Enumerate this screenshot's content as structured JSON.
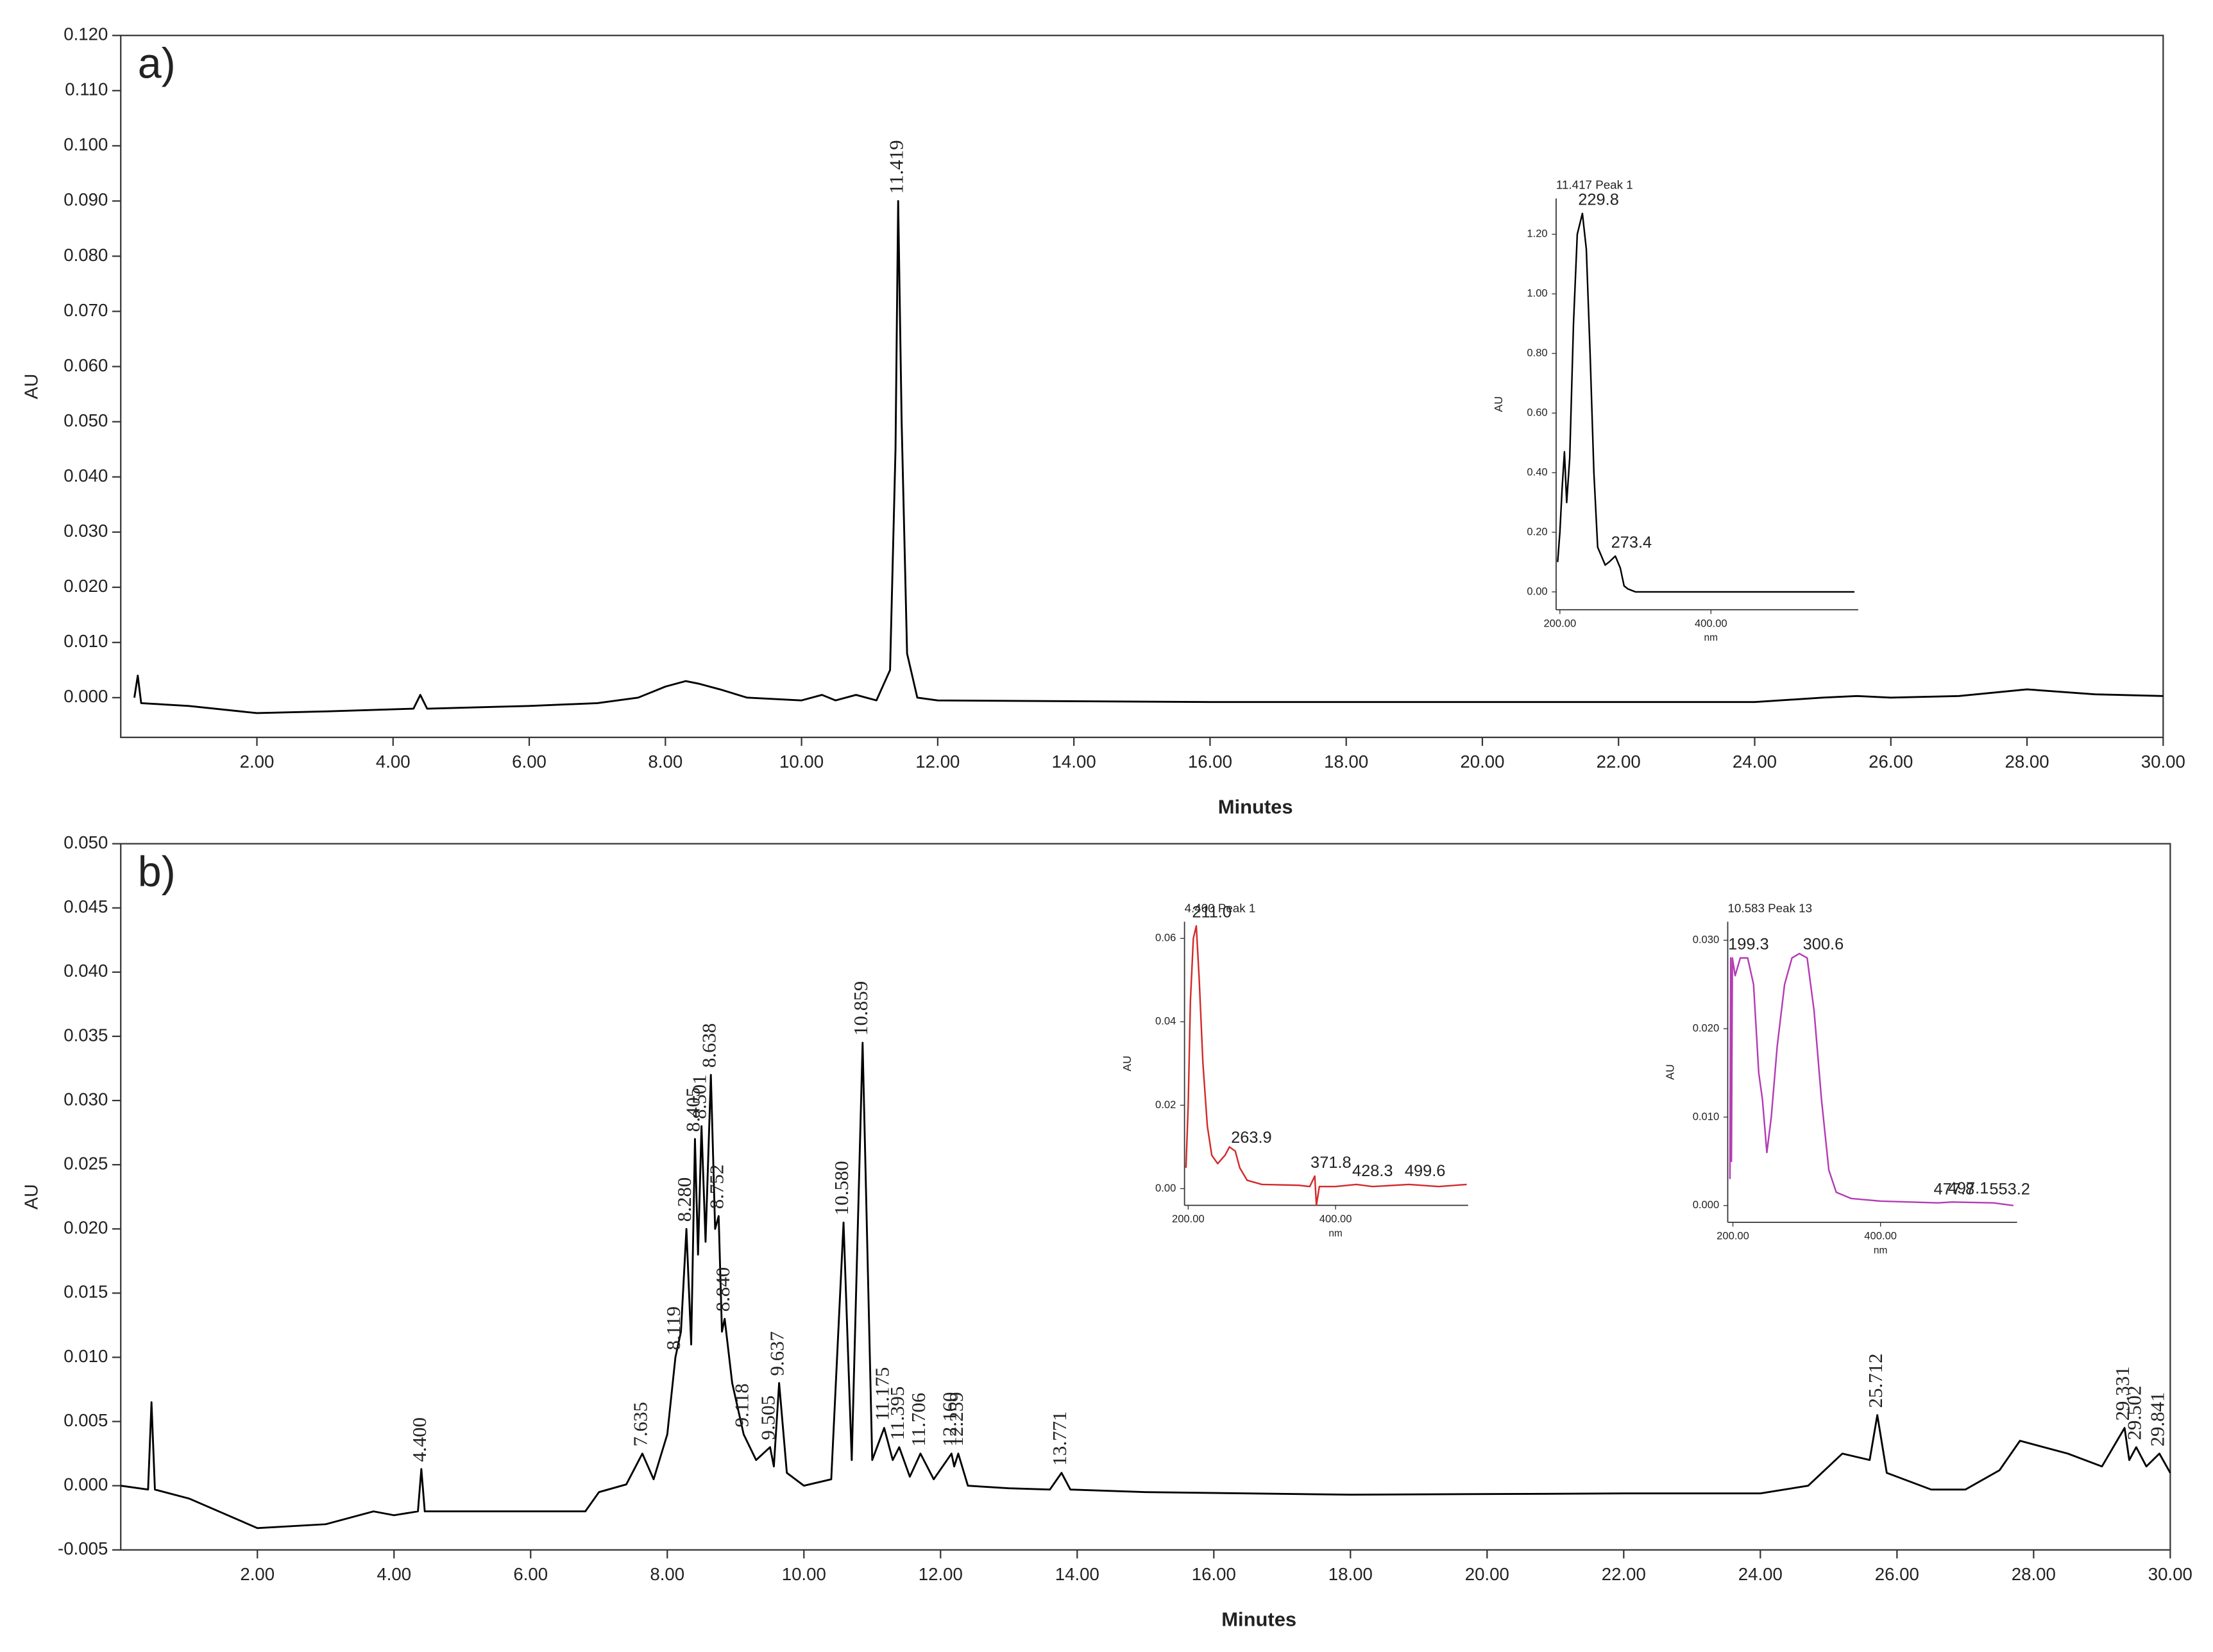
{
  "chart_data": [
    {
      "type": "line",
      "panel_label": "a)",
      "xlabel": "Minutes",
      "ylabel": "AU",
      "color": "#000000",
      "xlim": [
        0,
        30
      ],
      "ylim": [
        -0.0072,
        0.12
      ],
      "xticks": [
        {
          "value": 2,
          "label": "2.00"
        },
        {
          "value": 4,
          "label": "4.00"
        },
        {
          "value": 6,
          "label": "6.00"
        },
        {
          "value": 8,
          "label": "8.00"
        },
        {
          "value": 10,
          "label": "10.00"
        },
        {
          "value": 12,
          "label": "12.00"
        },
        {
          "value": 14,
          "label": "14.00"
        },
        {
          "value": 16,
          "label": "16.00"
        },
        {
          "value": 18,
          "label": "18.00"
        },
        {
          "value": 20,
          "label": "20.00"
        },
        {
          "value": 22,
          "label": "22.00"
        },
        {
          "value": 24,
          "label": "24.00"
        },
        {
          "value": 26,
          "label": "26.00"
        },
        {
          "value": 28,
          "label": "28.00"
        },
        {
          "value": 30,
          "label": "30.00"
        }
      ],
      "yticks": [
        {
          "value": 0,
          "label": "0.000"
        },
        {
          "value": 0.01,
          "label": "0.010"
        },
        {
          "value": 0.02,
          "label": "0.020"
        },
        {
          "value": 0.03,
          "label": "0.030"
        },
        {
          "value": 0.04,
          "label": "0.040"
        },
        {
          "value": 0.05,
          "label": "0.050"
        },
        {
          "value": 0.06,
          "label": "0.060"
        },
        {
          "value": 0.07,
          "label": "0.070"
        },
        {
          "value": 0.08,
          "label": "0.080"
        },
        {
          "value": 0.09,
          "label": "0.090"
        },
        {
          "value": 0.1,
          "label": "0.100"
        },
        {
          "value": 0.11,
          "label": "0.110"
        },
        {
          "value": 0.12,
          "label": "0.120"
        }
      ],
      "x": [
        0.2,
        0.25,
        0.3,
        1,
        2,
        3,
        4.3,
        4.4,
        4.5,
        6,
        7,
        7.6,
        8,
        8.3,
        8.5,
        8.8,
        9.2,
        10,
        10.3,
        10.5,
        10.8,
        11.1,
        11.3,
        11.38,
        11.419,
        11.47,
        11.55,
        11.7,
        12,
        16,
        20,
        24,
        25,
        25.5,
        26,
        27,
        28,
        29,
        30
      ],
      "values": [
        0,
        0.004,
        -0.001,
        -0.0015,
        -0.0028,
        -0.0025,
        -0.002,
        0.0005,
        -0.002,
        -0.0015,
        -0.001,
        0,
        0.002,
        0.003,
        0.0025,
        0.0015,
        0,
        -0.0005,
        0.0005,
        -0.0005,
        0.0005,
        -0.0005,
        0.005,
        0.045,
        0.09,
        0.05,
        0.008,
        0,
        -0.0005,
        -0.0008,
        -0.0008,
        -0.0008,
        0,
        0.0003,
        0,
        0.0003,
        0.0015,
        0.0006,
        0.0003
      ],
      "annotations": [
        {
          "x": 11.419,
          "y": 0.09,
          "label": "11.419"
        }
      ]
    },
    {
      "type": "line",
      "title": "11.417 Peak 1",
      "xlabel": "nm",
      "ylabel": "AU",
      "color": "#000000",
      "xlim": [
        195,
        595
      ],
      "ylim": [
        -0.06,
        1.32
      ],
      "xticks": [
        {
          "value": 200,
          "label": "200.00"
        },
        {
          "value": 400,
          "label": "400.00"
        }
      ],
      "yticks": [
        {
          "value": 0,
          "label": "0.00"
        },
        {
          "value": 0.2,
          "label": "0.20"
        },
        {
          "value": 0.4,
          "label": "0.40"
        },
        {
          "value": 0.6,
          "label": "0.60"
        },
        {
          "value": 0.8,
          "label": "0.80"
        },
        {
          "value": 1,
          "label": "1.00"
        },
        {
          "value": 1.2,
          "label": "1.20"
        }
      ],
      "x": [
        197,
        200,
        203,
        206,
        209,
        213,
        218,
        223,
        229.8,
        235,
        240,
        245,
        250,
        255,
        260,
        265,
        273.4,
        280,
        285,
        290,
        300,
        400,
        590
      ],
      "values": [
        0.1,
        0.2,
        0.35,
        0.47,
        0.3,
        0.45,
        0.9,
        1.2,
        1.27,
        1.15,
        0.8,
        0.4,
        0.15,
        0.12,
        0.09,
        0.1,
        0.12,
        0.08,
        0.02,
        0.01,
        0,
        0,
        0
      ],
      "annotations": [
        {
          "x": 229.8,
          "y": 1.27,
          "label": "229.8"
        },
        {
          "x": 273.4,
          "y": 0.12,
          "label": "273.4"
        }
      ]
    },
    {
      "type": "line",
      "panel_label": "b)",
      "xlabel": "Minutes",
      "ylabel": "AU",
      "color": "#000000",
      "xlim": [
        0,
        30
      ],
      "ylim": [
        -0.005,
        0.05
      ],
      "xticks": [
        {
          "value": 2,
          "label": "2.00"
        },
        {
          "value": 4,
          "label": "4.00"
        },
        {
          "value": 6,
          "label": "6.00"
        },
        {
          "value": 8,
          "label": "8.00"
        },
        {
          "value": 10,
          "label": "10.00"
        },
        {
          "value": 12,
          "label": "12.00"
        },
        {
          "value": 14,
          "label": "14.00"
        },
        {
          "value": 16,
          "label": "16.00"
        },
        {
          "value": 18,
          "label": "18.00"
        },
        {
          "value": 20,
          "label": "20.00"
        },
        {
          "value": 22,
          "label": "22.00"
        },
        {
          "value": 24,
          "label": "24.00"
        },
        {
          "value": 26,
          "label": "26.00"
        },
        {
          "value": 28,
          "label": "28.00"
        },
        {
          "value": 30,
          "label": "30.00"
        }
      ],
      "yticks": [
        {
          "value": -0.005,
          "label": "-0.005"
        },
        {
          "value": 0,
          "label": "0.000"
        },
        {
          "value": 0.005,
          "label": "0.005"
        },
        {
          "value": 0.01,
          "label": "0.010"
        },
        {
          "value": 0.015,
          "label": "0.015"
        },
        {
          "value": 0.02,
          "label": "0.020"
        },
        {
          "value": 0.025,
          "label": "0.025"
        },
        {
          "value": 0.03,
          "label": "0.030"
        },
        {
          "value": 0.035,
          "label": "0.035"
        },
        {
          "value": 0.04,
          "label": "0.040"
        },
        {
          "value": 0.045,
          "label": "0.045"
        },
        {
          "value": 0.05,
          "label": "0.050"
        }
      ],
      "x": [
        0,
        0.4,
        0.45,
        0.5,
        1,
        2,
        3,
        3.7,
        4,
        4.35,
        4.4,
        4.45,
        5,
        6,
        6.8,
        7,
        7.4,
        7.635,
        7.8,
        8,
        8.119,
        8.2,
        8.28,
        8.35,
        8.405,
        8.45,
        8.501,
        8.56,
        8.638,
        8.7,
        8.752,
        8.8,
        8.84,
        8.95,
        9.118,
        9.3,
        9.505,
        9.56,
        9.637,
        9.75,
        10,
        10.4,
        10.58,
        10.7,
        10.859,
        11,
        11.175,
        11.3,
        11.395,
        11.55,
        11.706,
        11.9,
        12.16,
        12.2,
        12.259,
        12.4,
        13,
        13.6,
        13.771,
        13.9,
        15,
        18,
        22,
        24,
        24.7,
        25.2,
        25.6,
        25.712,
        25.85,
        26.5,
        27,
        27.5,
        27.8,
        28.5,
        29,
        29.331,
        29.4,
        29.502,
        29.65,
        29.841,
        30
      ],
      "values": [
        0,
        -0.0003,
        0.0065,
        -0.0003,
        -0.001,
        -0.0033,
        -0.003,
        -0.002,
        -0.0023,
        -0.002,
        0.0013,
        -0.002,
        -0.002,
        -0.002,
        -0.002,
        -0.0005,
        0.0001,
        0.0025,
        0.0005,
        0.004,
        0.01,
        0.012,
        0.02,
        0.011,
        0.027,
        0.018,
        0.028,
        0.019,
        0.032,
        0.02,
        0.021,
        0.012,
        0.013,
        0.008,
        0.004,
        0.002,
        0.003,
        0.0015,
        0.008,
        0.001,
        0,
        0.0005,
        0.0205,
        0.002,
        0.0345,
        0.002,
        0.0045,
        0.002,
        0.003,
        0.0007,
        0.0025,
        0.0005,
        0.0025,
        0.0015,
        0.0025,
        0,
        -0.0002,
        -0.0003,
        0.001,
        -0.0003,
        -0.0005,
        -0.0007,
        -0.0006,
        -0.0006,
        0,
        0.0025,
        0.002,
        0.0055,
        0.001,
        -0.0003,
        -0.0003,
        0.0012,
        0.0035,
        0.0025,
        0.0015,
        0.0045,
        0.002,
        0.003,
        0.0015,
        0.0025,
        0.001
      ],
      "annotations": [
        {
          "x": 4.4,
          "y": 0.0013,
          "label": "4.400"
        },
        {
          "x": 7.635,
          "y": 0.0025,
          "label": "7.635"
        },
        {
          "x": 8.119,
          "y": 0.01,
          "label": "8.119"
        },
        {
          "x": 8.28,
          "y": 0.02,
          "label": "8.280"
        },
        {
          "x": 8.405,
          "y": 0.027,
          "label": "8.405"
        },
        {
          "x": 8.501,
          "y": 0.028,
          "label": "8.501"
        },
        {
          "x": 8.638,
          "y": 0.032,
          "label": "8.638"
        },
        {
          "x": 8.752,
          "y": 0.021,
          "label": "8.752"
        },
        {
          "x": 8.84,
          "y": 0.013,
          "label": "8.840"
        },
        {
          "x": 9.118,
          "y": 0.004,
          "label": "9.118"
        },
        {
          "x": 9.505,
          "y": 0.003,
          "label": "9.505"
        },
        {
          "x": 9.637,
          "y": 0.008,
          "label": "9.637"
        },
        {
          "x": 10.58,
          "y": 0.0205,
          "label": "10.580"
        },
        {
          "x": 10.859,
          "y": 0.0345,
          "label": "10.859"
        },
        {
          "x": 11.175,
          "y": 0.0045,
          "label": "11.175"
        },
        {
          "x": 11.395,
          "y": 0.003,
          "label": "11.395"
        },
        {
          "x": 11.706,
          "y": 0.0025,
          "label": "11.706"
        },
        {
          "x": 12.16,
          "y": 0.0025,
          "label": "12.160"
        },
        {
          "x": 12.259,
          "y": 0.0025,
          "label": "12.259"
        },
        {
          "x": 13.771,
          "y": 0.001,
          "label": "13.771"
        },
        {
          "x": 25.712,
          "y": 0.0055,
          "label": "25.712"
        },
        {
          "x": 29.331,
          "y": 0.0045,
          "label": "29.331"
        },
        {
          "x": 29.502,
          "y": 0.003,
          "label": "29.502"
        },
        {
          "x": 29.841,
          "y": 0.0025,
          "label": "29.841"
        }
      ]
    },
    {
      "type": "line",
      "title": "4.400 Peak 1",
      "xlabel": "nm",
      "ylabel": "AU",
      "color": "#d42a2a",
      "xlim": [
        195,
        580
      ],
      "ylim": [
        -0.004,
        0.064
      ],
      "xticks": [
        {
          "value": 200,
          "label": "200.00"
        },
        {
          "value": 400,
          "label": "400.00"
        }
      ],
      "yticks": [
        {
          "value": 0,
          "label": "0.00"
        },
        {
          "value": 0.02,
          "label": "0.02"
        },
        {
          "value": 0.04,
          "label": "0.04"
        },
        {
          "value": 0.06,
          "label": "0.06"
        }
      ],
      "x": [
        197,
        200,
        203,
        207,
        211,
        215,
        220,
        226,
        232,
        240,
        250,
        256,
        263.9,
        270,
        280,
        300,
        350,
        365,
        371.8,
        374,
        378,
        400,
        428.3,
        450,
        499.6,
        540,
        578
      ],
      "values": [
        0.005,
        0.02,
        0.045,
        0.06,
        0.063,
        0.05,
        0.03,
        0.015,
        0.008,
        0.006,
        0.008,
        0.01,
        0.009,
        0.005,
        0.002,
        0.001,
        0.0008,
        0.0005,
        0.003,
        -0.004,
        0.0005,
        0.0005,
        0.001,
        0.0005,
        0.001,
        0.0005,
        0.001
      ],
      "annotations": [
        {
          "x": 211,
          "y": 0.063,
          "label": "211.0"
        },
        {
          "x": 263.9,
          "y": 0.009,
          "label": "263.9"
        },
        {
          "x": 371.8,
          "y": 0.003,
          "label": "371.8"
        },
        {
          "x": 428.3,
          "y": 0.001,
          "label": "428.3"
        },
        {
          "x": 499.6,
          "y": 0.001,
          "label": "499.6"
        }
      ]
    },
    {
      "type": "line",
      "title": "10.583 Peak 13",
      "xlabel": "nm",
      "ylabel": "AU",
      "color": "#b43cb4",
      "xlim": [
        193,
        585
      ],
      "ylim": [
        -0.0019,
        0.0321
      ],
      "xticks": [
        {
          "value": 200,
          "label": "200.00"
        },
        {
          "value": 400,
          "label": "400.00"
        }
      ],
      "yticks": [
        {
          "value": 0,
          "label": "0.000"
        },
        {
          "value": 0.01,
          "label": "0.010"
        },
        {
          "value": 0.02,
          "label": "0.020"
        },
        {
          "value": 0.03,
          "label": "0.030"
        }
      ],
      "x": [
        196,
        197,
        198,
        199.3,
        203,
        210,
        220,
        228,
        235,
        240,
        246,
        252,
        260,
        270,
        280,
        290,
        300.6,
        310,
        320,
        330,
        340,
        360,
        400,
        477.8,
        497.1,
        553.2,
        580
      ],
      "values": [
        0.003,
        0.028,
        0.005,
        0.028,
        0.026,
        0.028,
        0.028,
        0.025,
        0.015,
        0.012,
        0.006,
        0.01,
        0.018,
        0.025,
        0.028,
        0.0285,
        0.028,
        0.022,
        0.012,
        0.004,
        0.0015,
        0.0008,
        0.0005,
        0.0003,
        0.0004,
        0.0003,
        0
      ],
      "annotations": [
        {
          "x": 199.3,
          "y": 0.028,
          "label": "199.3"
        },
        {
          "x": 300.6,
          "y": 0.028,
          "label": "300.6"
        },
        {
          "x": 477.8,
          "y": 0.0003,
          "label": "477.8"
        },
        {
          "x": 497.1,
          "y": 0.0004,
          "label": "497.1"
        },
        {
          "x": 553.2,
          "y": 0.0003,
          "label": "553.2"
        }
      ]
    }
  ]
}
